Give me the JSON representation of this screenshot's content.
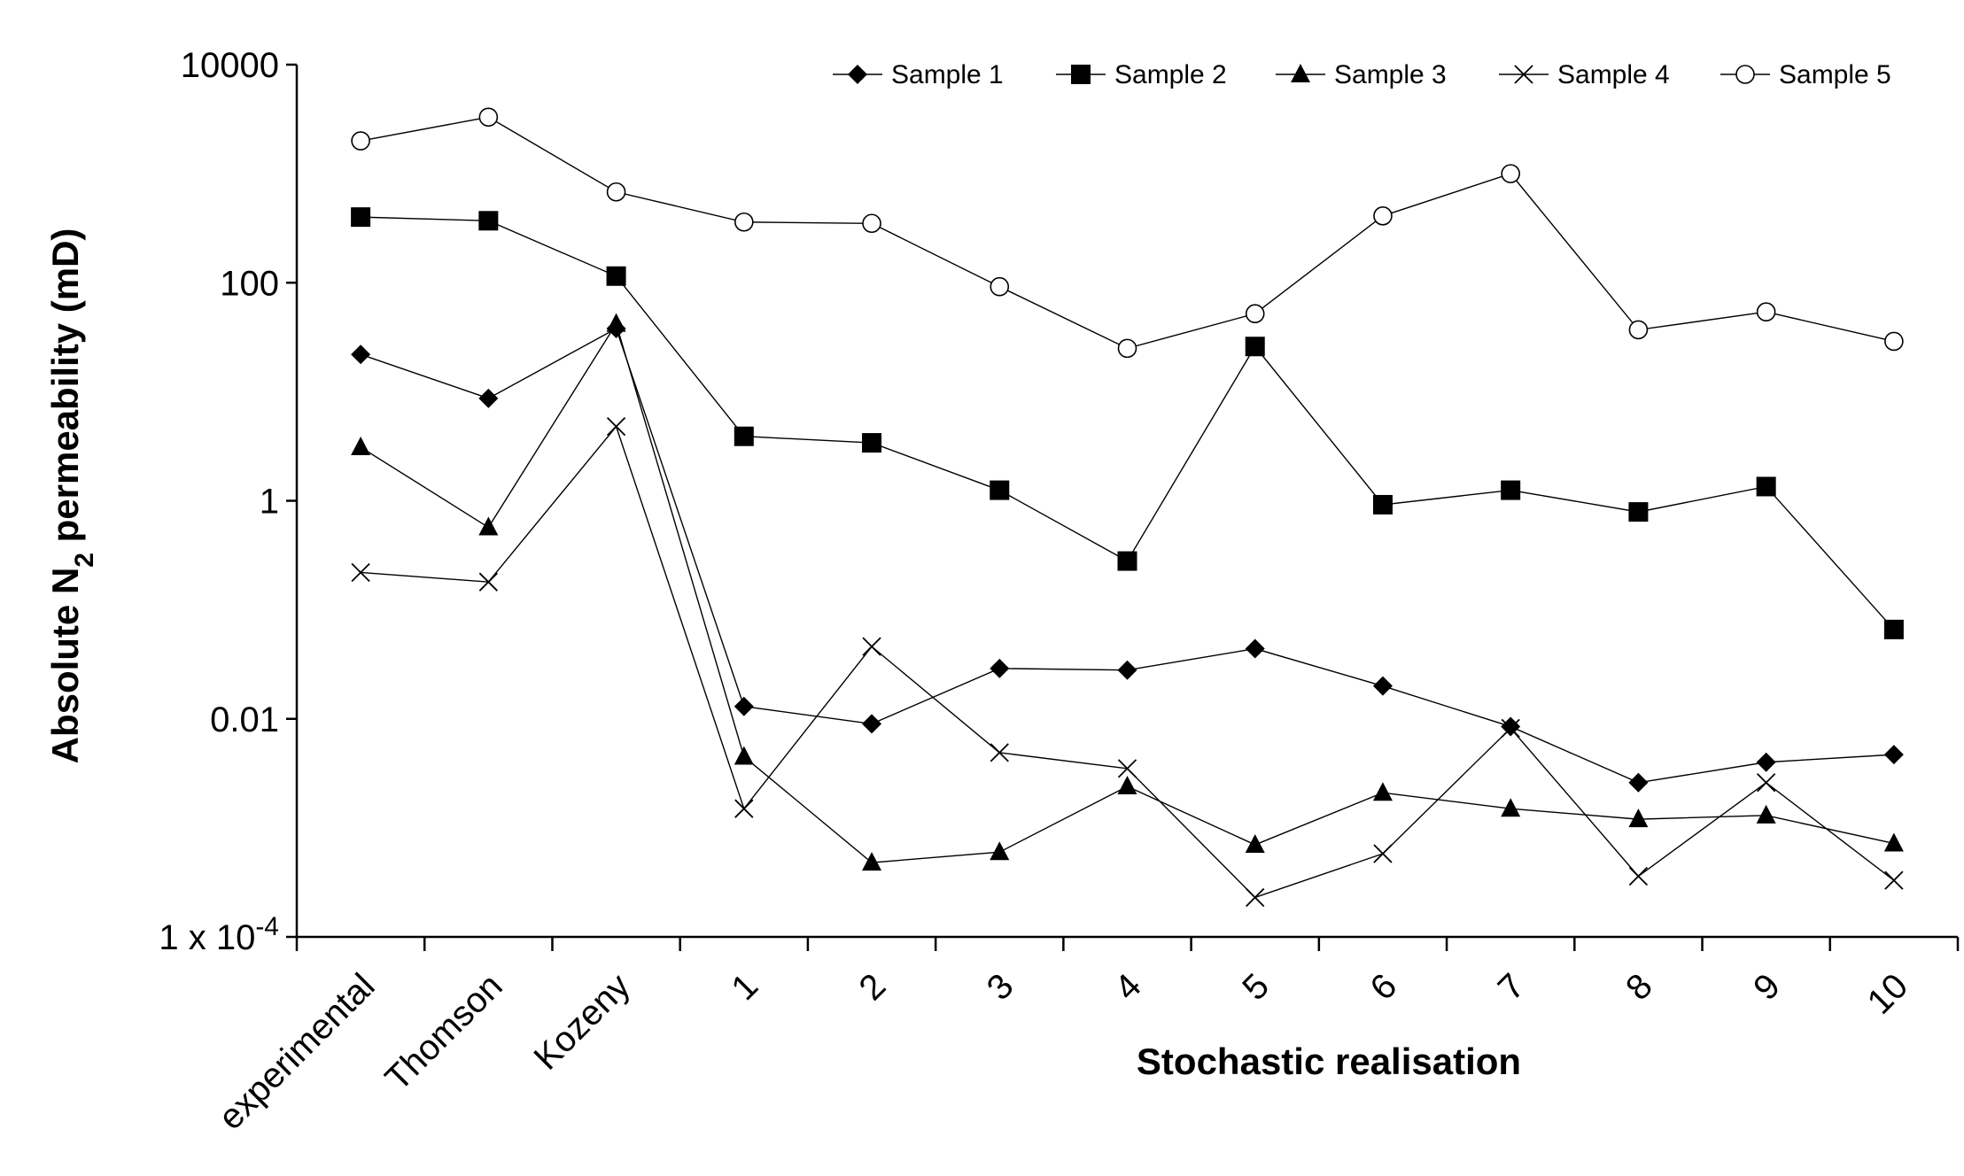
{
  "chart_data": {
    "type": "line",
    "y_scale": "log",
    "ylim": [
      0.0001,
      10000
    ],
    "grid": false,
    "legend_position": "top-right",
    "ylabel": {
      "main": "Absolute  N",
      "sub": "2",
      "tail": "  permeability (mD)"
    },
    "xlabel": "Stochastic realisation",
    "y_ticks": [
      {
        "value": 10000,
        "label": "10000"
      },
      {
        "value": 100,
        "label": "100"
      },
      {
        "value": 1,
        "label": "1"
      },
      {
        "value": 0.01,
        "label": "0.01"
      },
      {
        "value": 0.0001,
        "label": "1 x 10",
        "exp": "-4"
      }
    ],
    "categories": [
      "experimental",
      "Thomson",
      "Kozeny",
      "1",
      "2",
      "3",
      "4",
      "5",
      "6",
      "7",
      "8",
      "9",
      "10"
    ],
    "series": [
      {
        "name": "Sample 1",
        "marker": "diamond",
        "values": [
          22,
          8.7,
          38,
          0.013,
          0.009,
          0.029,
          0.028,
          0.044,
          0.02,
          0.0085,
          0.0026,
          0.004,
          0.0047
        ]
      },
      {
        "name": "Sample 2",
        "marker": "square",
        "values": [
          400,
          370,
          115,
          3.9,
          3.4,
          1.25,
          0.28,
          26,
          0.92,
          1.25,
          0.79,
          1.35,
          0.066
        ]
      },
      {
        "name": "Sample 3",
        "marker": "triangle",
        "values": [
          3.1,
          0.57,
          42,
          0.0045,
          0.00048,
          0.0006,
          0.0024,
          0.0007,
          0.0021,
          0.0015,
          0.0012,
          0.0013,
          0.00072
        ]
      },
      {
        "name": "Sample 4",
        "marker": "x",
        "values": [
          0.22,
          0.18,
          4.8,
          0.0015,
          0.046,
          0.0049,
          0.0035,
          0.00023,
          0.00058,
          0.0082,
          0.00036,
          0.0026,
          0.00033
        ]
      },
      {
        "name": "Sample 5",
        "marker": "circle",
        "values": [
          2000,
          3300,
          680,
          360,
          350,
          92,
          25,
          52,
          410,
          1000,
          37,
          54,
          29
        ]
      }
    ]
  }
}
